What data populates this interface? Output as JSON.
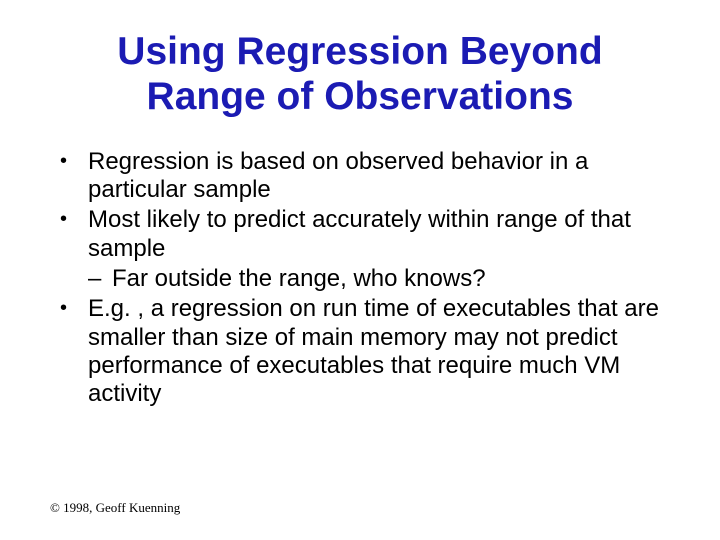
{
  "title_line1": "Using Regression Beyond",
  "title_line2": "Range of Observations",
  "title_color": "#1b1bb3",
  "text_color": "#000000",
  "background_color": "#ffffff",
  "title_fontsize": 39,
  "body_fontsize": 24,
  "footer_fontsize": 13,
  "bullets": {
    "b1": "Regression is based on observed behavior in a particular sample",
    "b2": "Most likely to predict accurately within range of that sample",
    "b2_sub1": "Far outside the range, who knows?",
    "b3": "E.g. , a regression on run time of executables that are smaller than size of main memory may not predict performance of executables that require much VM activity"
  },
  "footer": "© 1998, Geoff Kuenning"
}
